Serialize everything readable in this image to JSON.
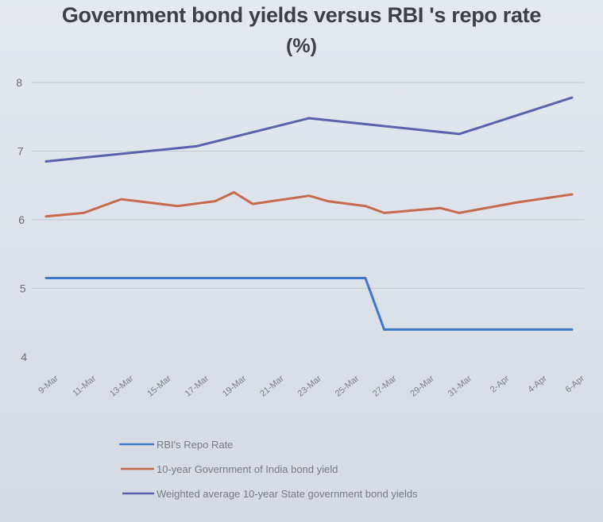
{
  "chart_data": {
    "type": "line",
    "title": "Government bond yields versus RBI 's repo rate",
    "subtitle": "(%)",
    "xlabel": "",
    "ylabel": "",
    "ylim": [
      4,
      8
    ],
    "yticks": [
      "4",
      "5",
      "6",
      "7",
      "8"
    ],
    "grid": true,
    "legend_position": "bottom-left",
    "x_tick_labels": [
      "9-Mar",
      "11-Mar",
      "13-Mar",
      "15-Mar",
      "17-Mar",
      "19-Mar",
      "21-Mar",
      "23-Mar",
      "25-Mar",
      "27-Mar",
      "29-Mar",
      "31-Mar",
      "2-Apr",
      "4-Apr",
      "6-Apr"
    ],
    "series": [
      {
        "name": "RBI's Repo Rate",
        "color": "#3f78c8",
        "points": [
          {
            "x": "9-Mar",
            "y": 5.15
          },
          {
            "x": "26-Mar",
            "y": 5.15
          },
          {
            "x": "27-Mar",
            "y": 4.4
          },
          {
            "x": "6-Apr",
            "y": 4.4
          }
        ]
      },
      {
        "name": "10-year Government of India bond yield",
        "color": "#c56a4c",
        "points": [
          {
            "x": "9-Mar",
            "y": 6.05
          },
          {
            "x": "11-Mar",
            "y": 6.1
          },
          {
            "x": "13-Mar",
            "y": 6.3
          },
          {
            "x": "16-Mar",
            "y": 6.2
          },
          {
            "x": "18-Mar",
            "y": 6.27
          },
          {
            "x": "19-Mar",
            "y": 6.4
          },
          {
            "x": "20-Mar",
            "y": 6.23
          },
          {
            "x": "23-Mar",
            "y": 6.35
          },
          {
            "x": "24-Mar",
            "y": 6.27
          },
          {
            "x": "26-Mar",
            "y": 6.2
          },
          {
            "x": "27-Mar",
            "y": 6.1
          },
          {
            "x": "30-Mar",
            "y": 6.17
          },
          {
            "x": "31-Mar",
            "y": 6.1
          },
          {
            "x": "3-Apr",
            "y": 6.25
          },
          {
            "x": "6-Apr",
            "y": 6.37
          }
        ]
      },
      {
        "name": "Weighted average 10-year State government bond yields",
        "color": "#5b62ad",
        "points": [
          {
            "x": "9-Mar",
            "y": 6.85
          },
          {
            "x": "17-Mar",
            "y": 7.07
          },
          {
            "x": "23-Mar",
            "y": 7.48
          },
          {
            "x": "31-Mar",
            "y": 7.25
          },
          {
            "x": "6-Apr",
            "y": 7.78
          }
        ]
      }
    ]
  }
}
